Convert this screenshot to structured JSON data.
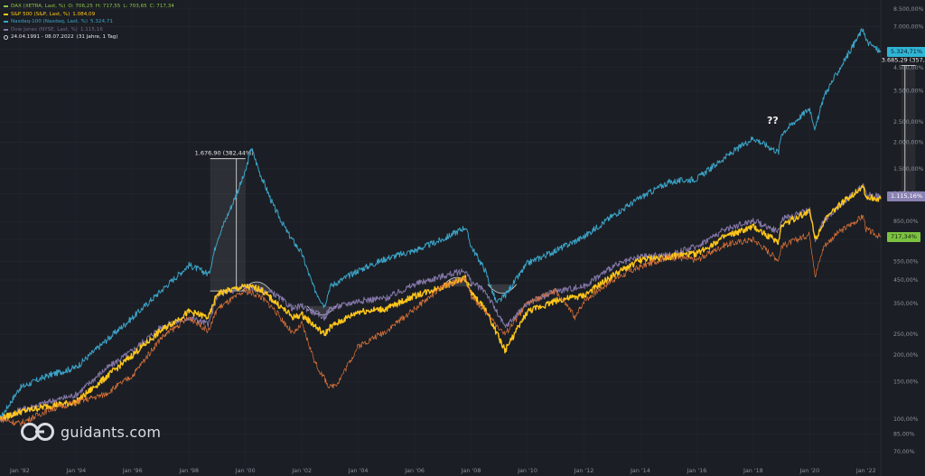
{
  "legend": {
    "dax": {
      "label": "DAX (XETRA, Last, %)",
      "o": "O: 706,25",
      "h": "H: 717,55",
      "l": "L: 703,65",
      "c": "C: 717,34",
      "color": "#8bc34a"
    },
    "sp500": {
      "label": "S&P 500 (S&P, Last, %)",
      "value": "1.084,09",
      "color": "#ffc61a"
    },
    "nasdaq": {
      "label": "Nasdaq-100 (Nasdaq, Last, %)",
      "value": "5.324,71",
      "color": "#3ba3c7"
    },
    "dow": {
      "label": "Dow Jones (NYSE, Last, %)",
      "value": "1.115,16",
      "color": "#8477a8"
    },
    "range": "24.04.1991 - 08.07.2022",
    "range_note": "(31 Jahre, 1 Tag)"
  },
  "branding": {
    "logo_text": "guidants.com"
  },
  "badges": {
    "nasdaq": {
      "text": "5.324,71%",
      "color": "#2fb5d6",
      "text_color": "#0d1a20"
    },
    "dow": {
      "text": "1.115,16%",
      "color": "#8a82b3",
      "text_color": "#ffffff"
    },
    "dax": {
      "text": "717,34%",
      "color": "#7cc241",
      "text_color": "#10200a"
    }
  },
  "annotations": {
    "dotcom_peak": "1.676,90 (382,44%)",
    "current_drop": "3.685,29 (357,24%)",
    "question": "??"
  },
  "chart_data": {
    "type": "line",
    "yscale": "log",
    "ylim": [
      60,
      9000
    ],
    "y_tick_labels": [
      "8.500,00%",
      "7.000,00%",
      "5.500,00%",
      "4.500,00%",
      "3.500,00%",
      "2.500,00%",
      "2.000,00%",
      "1.500,00%",
      "1.150,00%",
      "850,00%",
      "700,00%",
      "550,00%",
      "450,00%",
      "350,00%",
      "250,00%",
      "200,00%",
      "150,00%",
      "100,00%",
      "85,00%",
      "70,00%"
    ],
    "y_tick_values": [
      8500,
      7000,
      5500,
      4500,
      3500,
      2500,
      2000,
      1500,
      1150,
      850,
      700,
      550,
      450,
      350,
      250,
      200,
      150,
      100,
      85,
      70
    ],
    "x_tick_labels": [
      "Jan '92",
      "Jan '94",
      "Jan '96",
      "Jan '98",
      "Jan '00",
      "Jan '02",
      "Jan '04",
      "Jan '06",
      "Jan '08",
      "Jan '10",
      "Jan '12",
      "Jan '14",
      "Jan '16",
      "Jan '18",
      "Jan '20",
      "Jan '22"
    ],
    "x_tick_years": [
      1992,
      1994,
      1996,
      1998,
      2000,
      2002,
      2004,
      2006,
      2008,
      2010,
      2012,
      2014,
      2016,
      2018,
      2020,
      2022
    ],
    "x_range": [
      1991.3,
      2022.52
    ],
    "grid": true,
    "series": [
      {
        "name": "Nasdaq-100 (Nasdaq, Last, %)",
        "color": "#3ba3c7",
        "x": [
          1991.3,
          1992,
          1993,
          1994,
          1995,
          1996,
          1997,
          1998,
          1998.7,
          1999,
          1999.5,
          2000,
          2000.2,
          2000.5,
          2001,
          2001.5,
          2002,
          2002.4,
          2002.8,
          2003,
          2004,
          2005,
          2006,
          2007,
          2007.8,
          2008,
          2008.5,
          2008.9,
          2009.2,
          2010,
          2011,
          2012,
          2013,
          2014,
          2015,
          2016,
          2017,
          2018,
          2018.9,
          2019,
          2020,
          2020.2,
          2020.5,
          2021,
          2021.9,
          2022,
          2022.52
        ],
        "y": [
          100,
          140,
          160,
          175,
          230,
          300,
          400,
          530,
          480,
          700,
          1000,
          1450,
          1900,
          1450,
          1000,
          750,
          600,
          420,
          340,
          420,
          500,
          570,
          620,
          700,
          800,
          650,
          500,
          350,
          380,
          540,
          620,
          720,
          900,
          1100,
          1300,
          1350,
          1700,
          2100,
          1800,
          2200,
          2900,
          2300,
          3300,
          4300,
          6900,
          6000,
          5324.71
        ]
      },
      {
        "name": "Dow Jones (NYSE, Last, %)",
        "color": "#8477a8",
        "x": [
          1991.3,
          1992,
          1993,
          1994,
          1995,
          1996,
          1997,
          1998,
          1998.7,
          1999,
          2000,
          2001,
          2001.7,
          2002,
          2002.8,
          2003,
          2004,
          2005,
          2006,
          2007,
          2007.8,
          2008,
          2008.5,
          2009.2,
          2010,
          2011,
          2012,
          2013,
          2014,
          2015,
          2016,
          2017,
          2018,
          2018.9,
          2019,
          2020,
          2020.2,
          2020.5,
          2021,
          2021.9,
          2022,
          2022.52
        ],
        "y": [
          100,
          110,
          120,
          130,
          170,
          210,
          270,
          300,
          280,
          380,
          420,
          390,
          330,
          340,
          300,
          330,
          360,
          370,
          430,
          470,
          500,
          440,
          400,
          270,
          350,
          400,
          420,
          520,
          580,
          590,
          650,
          780,
          860,
          760,
          870,
          960,
          700,
          850,
          1000,
          1250,
          1130,
          1115.16
        ]
      },
      {
        "name": "S&P 500 (S&P, Last, %)",
        "color": "#ffc61a",
        "x": [
          1991.3,
          1992,
          1993,
          1994,
          1995,
          1996,
          1997,
          1998,
          1998.7,
          1999,
          2000,
          2000.5,
          2001,
          2001.7,
          2002,
          2002.8,
          2003,
          2004,
          2005,
          2006,
          2007,
          2007.8,
          2008,
          2008.5,
          2009.2,
          2010,
          2011,
          2012,
          2013,
          2014,
          2015,
          2016,
          2017,
          2018,
          2018.9,
          2019,
          2020,
          2020.2,
          2020.5,
          2021,
          2021.9,
          2022,
          2022.52
        ],
        "y": [
          100,
          108,
          115,
          120,
          155,
          200,
          260,
          320,
          300,
          390,
          420,
          410,
          360,
          300,
          310,
          250,
          270,
          320,
          330,
          380,
          420,
          460,
          390,
          330,
          210,
          320,
          360,
          380,
          470,
          560,
          580,
          600,
          720,
          800,
          680,
          820,
          950,
          700,
          850,
          1000,
          1250,
          1100,
          1084.09
        ]
      },
      {
        "name": "DAX (XETRA, Last, %)",
        "color": "#e0753a",
        "x": [
          1991.3,
          1992,
          1993,
          1994,
          1995,
          1996,
          1997,
          1998,
          1998.7,
          1999,
          2000,
          2000.5,
          2001,
          2001.7,
          2002,
          2002.5,
          2003,
          2003.3,
          2004,
          2005,
          2006,
          2007,
          2007.8,
          2008,
          2008.5,
          2009.2,
          2010,
          2011,
          2011.7,
          2012,
          2013,
          2014,
          2015,
          2016,
          2017,
          2018,
          2018.9,
          2019,
          2020,
          2020.2,
          2020.5,
          2021,
          2021.9,
          2022,
          2022.52
        ],
        "y": [
          100,
          95,
          110,
          120,
          130,
          160,
          240,
          300,
          260,
          330,
          400,
          380,
          330,
          250,
          280,
          180,
          140,
          150,
          220,
          260,
          330,
          420,
          460,
          380,
          320,
          250,
          350,
          400,
          300,
          360,
          450,
          520,
          580,
          560,
          660,
          700,
          560,
          650,
          740,
          470,
          650,
          750,
          900,
          780,
          717.34
        ]
      }
    ]
  }
}
